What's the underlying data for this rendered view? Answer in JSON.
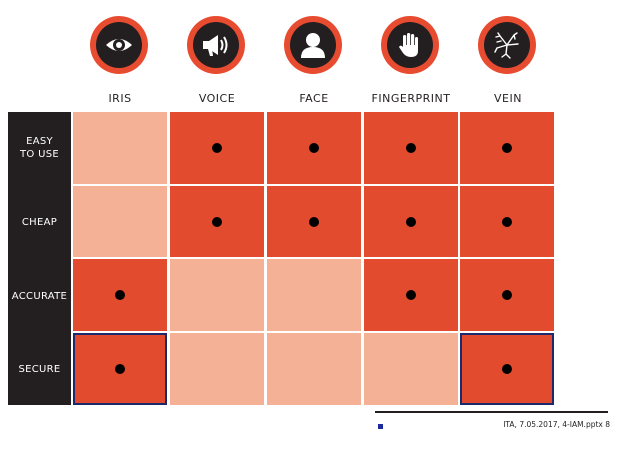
{
  "columns": [
    {
      "label": "IRIS",
      "icon": "eye-icon"
    },
    {
      "label": "VOICE",
      "icon": "megaphone-icon"
    },
    {
      "label": "FACE",
      "icon": "person-icon"
    },
    {
      "label": "FINGERPRINT",
      "icon": "hand-icon"
    },
    {
      "label": "VEIN",
      "icon": "vein-icon"
    }
  ],
  "rows": [
    {
      "line1": "EASY",
      "line2": "TO USE"
    },
    {
      "line1": "CHEAP",
      "line2": ""
    },
    {
      "line1": "ACCURATE",
      "line2": ""
    },
    {
      "line1": "SECURE",
      "line2": ""
    }
  ],
  "matrix": [
    [
      false,
      true,
      true,
      true,
      true
    ],
    [
      false,
      true,
      true,
      true,
      true
    ],
    [
      true,
      false,
      false,
      true,
      true
    ],
    [
      true,
      false,
      false,
      false,
      true
    ]
  ],
  "highlighted": [
    [
      3,
      0
    ],
    [
      3,
      4
    ]
  ],
  "footer": {
    "text": "ITA, 7.05.2017, 4-IAM.pptx 8"
  },
  "colors": {
    "on": "#e34b2f",
    "off": "#f4b196",
    "labels_bg": "#231f20",
    "outline": "#1c2a6b"
  }
}
